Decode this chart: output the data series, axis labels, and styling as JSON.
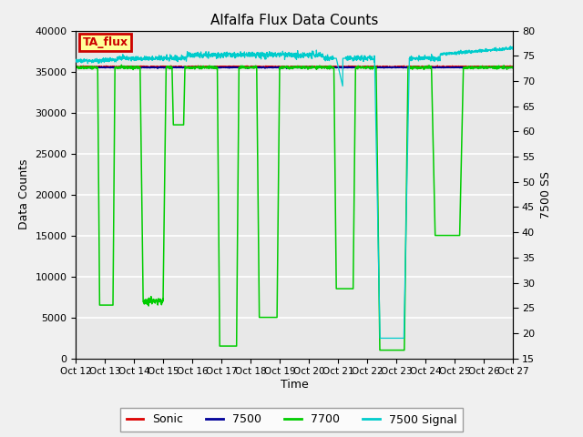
{
  "title": "Alfalfa Flux Data Counts",
  "xlabel": "Time",
  "ylabel_left": "Data Counts",
  "ylabel_right": "7500 SS",
  "ylim_left": [
    0,
    40000
  ],
  "ylim_right": [
    15,
    80
  ],
  "annotation_text": "TA_flux",
  "annotation_box_facecolor": "#ffff99",
  "annotation_box_edgecolor": "#cc0000",
  "annotation_text_color": "#cc0000",
  "fig_facecolor": "#f0f0f0",
  "ax_facecolor": "#e8e8e8",
  "grid_color": "#ffffff",
  "colors": {
    "Sonic": "#dd0000",
    "7500": "#000099",
    "7700": "#00cc00",
    "7500 Signal": "#00cccc"
  },
  "xtick_labels": [
    "Oct 12",
    "Oct 13",
    "Oct 14",
    "Oct 15",
    "Oct 16",
    "Oct 17",
    "Oct 18",
    "Oct 19",
    "Oct 20",
    "Oct 21",
    "Oct 22",
    "Oct 23",
    "Oct 24",
    "Oct 25",
    "Oct 26",
    "Oct 27"
  ],
  "xtick_positions": [
    0,
    1,
    2,
    3,
    4,
    5,
    6,
    7,
    8,
    9,
    10,
    11,
    12,
    13,
    14,
    15
  ],
  "yticks_left": [
    0,
    5000,
    10000,
    15000,
    20000,
    25000,
    30000,
    35000,
    40000
  ],
  "yticks_right": [
    15,
    20,
    25,
    30,
    35,
    40,
    45,
    50,
    55,
    60,
    65,
    70,
    75,
    80
  ]
}
